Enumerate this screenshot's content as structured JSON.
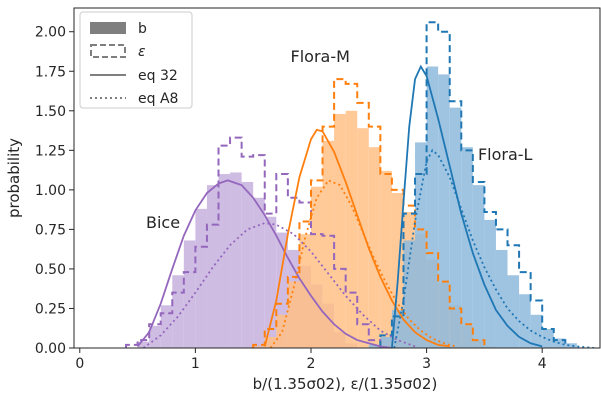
{
  "chart_data": {
    "type": "histogram_with_curves",
    "xlabel": "b/(1.35σ02), ε/(1.35σ02)",
    "ylabel": "probability",
    "xlim": [
      -0.05,
      4.5
    ],
    "ylim": [
      0.0,
      2.15
    ],
    "xticks": [
      "0",
      "1",
      "2",
      "3",
      "4"
    ],
    "yticks": [
      "0.00",
      "0.25",
      "0.50",
      "0.75",
      "1.00",
      "1.25",
      "1.50",
      "1.75",
      "2.00"
    ],
    "legend": {
      "placement": "upper-left",
      "entries": [
        {
          "label": "b",
          "style": "filled"
        },
        {
          "label": "ε",
          "style": "dashed-step"
        },
        {
          "label": "eq 32",
          "style": "solid-line"
        },
        {
          "label": "eq A8",
          "style": "dotted-line"
        }
      ]
    },
    "annotations": [
      {
        "text": "Bice",
        "x": 0.72,
        "y": 0.76
      },
      {
        "text": "Flora-M",
        "x": 2.08,
        "y": 1.81
      },
      {
        "text": "Flora-L",
        "x": 3.68,
        "y": 1.19
      }
    ],
    "series": [
      {
        "color": "#9467bd",
        "fill": "#c5b0de",
        "bin_width": 0.1,
        "b_hist": {
          "x_start": 0.5,
          "values": [
            0.04,
            0.14,
            0.27,
            0.46,
            0.68,
            0.88,
            1.03,
            1.1,
            1.11,
            1.05,
            0.95,
            0.83,
            0.73,
            0.62,
            0.52,
            0.4,
            0.28,
            0.1,
            0.03
          ]
        },
        "eps_hist": {
          "x_start": 0.4,
          "values": [
            0.02,
            0.05,
            0.15,
            0.22,
            0.35,
            0.48,
            0.64,
            0.78,
            1.28,
            1.33,
            1.21,
            1.22,
            0.85,
            1.1,
            0.95,
            0.92,
            0.72,
            0.71,
            0.5,
            0.35,
            0.15,
            0.05
          ]
        },
        "eq32": {
          "x": [
            0.5,
            0.6,
            0.7,
            0.8,
            0.9,
            1.0,
            1.1,
            1.2,
            1.28,
            1.4,
            1.5,
            1.6,
            1.7,
            1.8,
            1.9,
            2.0,
            2.1,
            2.2,
            2.3,
            2.4,
            2.5,
            2.6,
            2.7
          ],
          "y": [
            0.01,
            0.1,
            0.28,
            0.5,
            0.71,
            0.87,
            0.98,
            1.04,
            1.06,
            1.03,
            0.95,
            0.84,
            0.71,
            0.57,
            0.44,
            0.33,
            0.23,
            0.15,
            0.09,
            0.05,
            0.03,
            0.01,
            0.0
          ]
        },
        "eqA8": {
          "x": [
            0.55,
            0.7,
            0.85,
            1.0,
            1.15,
            1.3,
            1.45,
            1.6,
            1.7,
            1.85,
            2.0,
            2.15,
            2.3,
            2.45,
            2.6,
            2.75,
            2.9
          ],
          "y": [
            0.0,
            0.08,
            0.2,
            0.35,
            0.51,
            0.65,
            0.75,
            0.79,
            0.78,
            0.72,
            0.61,
            0.47,
            0.33,
            0.21,
            0.11,
            0.05,
            0.01
          ]
        }
      },
      {
        "color": "#ff7f0e",
        "fill": "#ffbf86",
        "bin_width": 0.1,
        "b_hist": {
          "x_start": 1.5,
          "values": [
            0.01,
            0.07,
            0.21,
            0.42,
            0.72,
            1.02,
            1.31,
            1.48,
            1.5,
            1.39,
            1.27,
            1.12,
            0.98,
            0.86,
            0.72,
            0.56,
            0.41,
            0.27,
            0.14,
            0.05,
            0.01
          ]
        },
        "eps_hist": {
          "x_start": 1.5,
          "values": [
            0.02,
            0.12,
            0.28,
            0.45,
            0.8,
            1.06,
            1.4,
            1.7,
            1.67,
            1.55,
            1.4,
            1.1,
            1.0,
            0.9,
            0.75,
            0.6,
            0.42,
            0.25,
            0.15,
            0.05
          ]
        },
        "eq32": {
          "x": [
            1.6,
            1.7,
            1.8,
            1.9,
            2.0,
            2.05,
            2.1,
            2.2,
            2.3,
            2.4,
            2.5,
            2.6,
            2.7,
            2.8,
            2.9,
            3.0,
            3.1,
            3.2
          ],
          "y": [
            0.01,
            0.3,
            0.72,
            1.08,
            1.32,
            1.38,
            1.37,
            1.24,
            1.05,
            0.84,
            0.63,
            0.45,
            0.3,
            0.18,
            0.1,
            0.05,
            0.02,
            0.01
          ]
        },
        "eqA8": {
          "x": [
            1.65,
            1.75,
            1.85,
            1.95,
            2.05,
            2.15,
            2.25,
            2.35,
            2.45,
            2.55,
            2.65,
            2.75,
            2.85,
            2.95,
            3.05,
            3.15,
            3.25
          ],
          "y": [
            0.0,
            0.1,
            0.38,
            0.7,
            0.95,
            1.06,
            1.03,
            0.9,
            0.73,
            0.56,
            0.41,
            0.28,
            0.18,
            0.11,
            0.06,
            0.03,
            0.01
          ]
        }
      },
      {
        "color": "#1f77b4",
        "fill": "#8dbadd",
        "bin_width": 0.1,
        "b_hist": {
          "x_start": 2.5,
          "values": [
            0.02,
            0.07,
            0.24,
            0.68,
            1.3,
            1.78,
            1.73,
            1.52,
            1.27,
            1.03,
            0.81,
            0.62,
            0.46,
            0.34,
            0.21,
            0.12,
            0.06,
            0.03
          ]
        },
        "eps_hist": {
          "x_start": 2.6,
          "values": [
            0.08,
            0.2,
            0.85,
            1.1,
            2.06,
            2.0,
            1.56,
            1.25,
            1.05,
            0.86,
            0.75,
            0.65,
            0.48,
            0.3,
            0.12,
            0.05
          ]
        },
        "eq32": {
          "x": [
            2.7,
            2.75,
            2.8,
            2.85,
            2.9,
            2.95,
            3.0,
            3.1,
            3.2,
            3.3,
            3.4,
            3.5,
            3.6,
            3.7,
            3.8,
            3.9,
            4.0
          ],
          "y": [
            0.0,
            0.42,
            0.92,
            1.4,
            1.7,
            1.78,
            1.72,
            1.45,
            1.15,
            0.85,
            0.6,
            0.4,
            0.24,
            0.14,
            0.07,
            0.03,
            0.01
          ]
        },
        "eqA8": {
          "x": [
            2.72,
            2.8,
            2.9,
            3.0,
            3.05,
            3.1,
            3.2,
            3.3,
            3.4,
            3.5,
            3.6,
            3.7,
            3.8,
            3.9,
            4.0,
            4.1,
            4.2,
            4.3,
            4.45
          ],
          "y": [
            0.0,
            0.3,
            0.8,
            1.18,
            1.25,
            1.22,
            1.08,
            0.88,
            0.68,
            0.51,
            0.37,
            0.25,
            0.17,
            0.11,
            0.07,
            0.04,
            0.02,
            0.01,
            0.0
          ]
        }
      }
    ]
  }
}
